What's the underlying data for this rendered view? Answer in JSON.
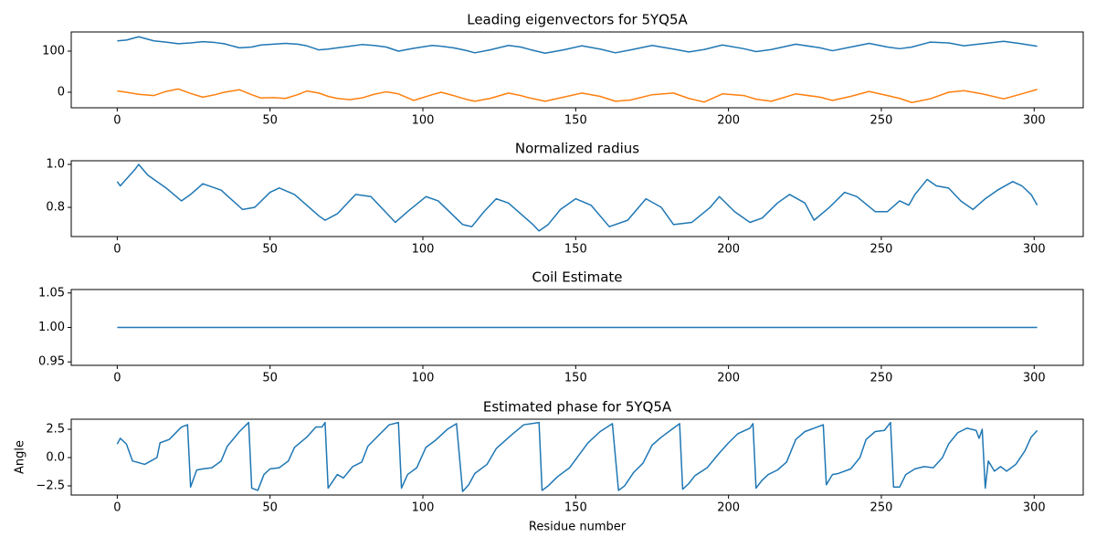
{
  "chart_data": [
    {
      "type": "line",
      "title": "Leading eigenvectors for 5YQ5A",
      "x": [
        0,
        3,
        7,
        12,
        16,
        20,
        24,
        28,
        32,
        35,
        40,
        44,
        47,
        51,
        55,
        59,
        62,
        66,
        69,
        72,
        76,
        80,
        84,
        88,
        92,
        97,
        103,
        106,
        110,
        114,
        117,
        122,
        128,
        132,
        135,
        140,
        146,
        152,
        158,
        163,
        168,
        175,
        182,
        187,
        192,
        198,
        205,
        209,
        214,
        222,
        230,
        234,
        240,
        246,
        252,
        256,
        260,
        266,
        272,
        277,
        283,
        290,
        295,
        301
      ],
      "series": [
        {
          "color": "#1f77b4",
          "values": [
            125,
            127,
            135,
            125,
            122,
            118,
            120,
            123,
            121,
            118,
            108,
            110,
            115,
            117,
            119,
            117,
            113,
            103,
            105,
            108,
            112,
            116,
            114,
            110,
            100,
            107,
            114,
            112,
            108,
            102,
            96,
            103,
            114,
            110,
            104,
            95,
            103,
            113,
            105,
            96,
            103,
            114,
            105,
            98,
            104,
            115,
            106,
            99,
            104,
            117,
            108,
            101,
            110,
            119,
            110,
            106,
            110,
            122,
            120,
            113,
            118,
            124,
            119,
            112
          ]
        },
        {
          "color": "#ff7f0e",
          "values": [
            3,
            0,
            -5,
            -8,
            2,
            8,
            -3,
            -12,
            -6,
            0,
            6,
            -6,
            -14,
            -13,
            -15,
            -6,
            3,
            -2,
            -10,
            -15,
            -18,
            -14,
            -5,
            1,
            -4,
            -20,
            -6,
            0,
            -8,
            -17,
            -22,
            -15,
            -2,
            -8,
            -14,
            -22,
            -12,
            -2,
            -10,
            -22,
            -19,
            -6,
            -2,
            -15,
            -24,
            -4,
            -8,
            -17,
            -22,
            -4,
            -12,
            -20,
            -10,
            2,
            -8,
            -15,
            -25,
            -16,
            0,
            4,
            -4,
            -16,
            -6,
            7
          ]
        }
      ],
      "xlim": [
        -15.05,
        316.05
      ],
      "ylim": [
        -37.8,
        146.7
      ],
      "xticks": [
        0,
        50,
        100,
        150,
        200,
        250,
        300
      ],
      "yticks": [
        0,
        100
      ]
    },
    {
      "type": "line",
      "title": "Normalized radius",
      "x": [
        0,
        1,
        6,
        7,
        10,
        16,
        21,
        24,
        28,
        34,
        41,
        45,
        50,
        53,
        58,
        66,
        68,
        72,
        78,
        83,
        91,
        95,
        101,
        105,
        113,
        116,
        120,
        124,
        128,
        136,
        138,
        141,
        145,
        150,
        155,
        161,
        167,
        173,
        178,
        182,
        188,
        194,
        197,
        202,
        207,
        211,
        216,
        220,
        225,
        228,
        233,
        238,
        242,
        248,
        252,
        256,
        259,
        261,
        265,
        268,
        272,
        276,
        280,
        284,
        288,
        293,
        296,
        299,
        301
      ],
      "values": [
        0.92,
        0.9,
        0.98,
        1.0,
        0.95,
        0.89,
        0.83,
        0.86,
        0.91,
        0.88,
        0.79,
        0.8,
        0.87,
        0.89,
        0.86,
        0.76,
        0.74,
        0.77,
        0.86,
        0.85,
        0.73,
        0.78,
        0.85,
        0.83,
        0.72,
        0.71,
        0.78,
        0.84,
        0.82,
        0.72,
        0.69,
        0.72,
        0.79,
        0.84,
        0.81,
        0.71,
        0.74,
        0.84,
        0.8,
        0.72,
        0.73,
        0.8,
        0.85,
        0.78,
        0.73,
        0.75,
        0.82,
        0.86,
        0.82,
        0.74,
        0.8,
        0.87,
        0.85,
        0.78,
        0.78,
        0.83,
        0.81,
        0.86,
        0.93,
        0.9,
        0.89,
        0.83,
        0.79,
        0.84,
        0.88,
        0.92,
        0.9,
        0.86,
        0.81
      ],
      "color": "#1f77b4",
      "xlim": [
        -15.05,
        316.05
      ],
      "ylim": [
        0.664,
        1.017
      ],
      "xticks": [
        0,
        50,
        100,
        150,
        200,
        250,
        300
      ],
      "yticks": [
        {
          "value": 0.8,
          "label": "0.8"
        },
        {
          "value": 1.0,
          "label": "1.0"
        }
      ]
    },
    {
      "type": "line",
      "title": "Coil Estimate",
      "x": [
        0,
        301
      ],
      "values": [
        1,
        1
      ],
      "color": "#1f77b4",
      "xlim": [
        -15.05,
        316.05
      ],
      "ylim": [
        0.945,
        1.055
      ],
      "xticks": [
        0,
        50,
        100,
        150,
        200,
        250,
        300
      ],
      "yticks": [
        {
          "value": 0.95,
          "label": "0.95"
        },
        {
          "value": 1.0,
          "label": "1.00"
        },
        {
          "value": 1.05,
          "label": "1.05"
        }
      ]
    },
    {
      "type": "line",
      "title": "Estimated phase for 5YQ5A",
      "xlabel": "Residue number",
      "ylabel": "Angle",
      "x": [
        0,
        1,
        3,
        5,
        9,
        11,
        13,
        14,
        17,
        21,
        23,
        24,
        26,
        28,
        31,
        34,
        36,
        40,
        43,
        44,
        46,
        48,
        50,
        53,
        56,
        58,
        62,
        65,
        67,
        68,
        69,
        72,
        74,
        77,
        80,
        82,
        86,
        89,
        92,
        93,
        95,
        98,
        101,
        104,
        108,
        111,
        113,
        115,
        117,
        121,
        124,
        129,
        133,
        138,
        139,
        141,
        144,
        148,
        151,
        154,
        158,
        162,
        164,
        166,
        169,
        172,
        175,
        178,
        182,
        184,
        185,
        187,
        189,
        193,
        197,
        200,
        203,
        207,
        208,
        209,
        211,
        213,
        216,
        219,
        222,
        225,
        228,
        231,
        232,
        234,
        236,
        240,
        243,
        245,
        248,
        251,
        253,
        254,
        256,
        258,
        261,
        264,
        267,
        270,
        272,
        275,
        278,
        281,
        282,
        283,
        284,
        285,
        287,
        289,
        291,
        294,
        297,
        299,
        301
      ],
      "values": [
        1.2,
        1.7,
        1.2,
        -0.3,
        -0.6,
        -0.3,
        0.0,
        1.3,
        1.6,
        2.7,
        2.9,
        -2.6,
        -1.1,
        -1.0,
        -0.9,
        -0.3,
        1.0,
        2.3,
        3.1,
        -2.7,
        -2.9,
        -1.5,
        -1.0,
        -0.9,
        -0.3,
        0.9,
        1.8,
        2.7,
        2.7,
        3.1,
        -2.7,
        -1.5,
        -1.8,
        -0.8,
        -0.4,
        1.0,
        2.1,
        2.9,
        3.1,
        -2.7,
        -1.5,
        -0.9,
        0.9,
        1.5,
        2.5,
        3.0,
        -3.0,
        -2.4,
        -1.4,
        -0.6,
        0.8,
        2.0,
        2.9,
        3.1,
        -2.9,
        -2.5,
        -1.7,
        -0.9,
        0.2,
        1.3,
        2.3,
        3.0,
        -2.9,
        -2.5,
        -1.3,
        -0.5,
        1.1,
        1.8,
        2.6,
        3.0,
        -2.8,
        -2.3,
        -1.6,
        -0.9,
        0.4,
        1.3,
        2.1,
        2.6,
        3.0,
        -2.7,
        -2.0,
        -1.5,
        -1.1,
        -0.4,
        1.6,
        2.3,
        2.6,
        2.9,
        -2.4,
        -1.5,
        -1.4,
        -1.0,
        0.0,
        1.6,
        2.3,
        2.4,
        3.1,
        -2.6,
        -2.6,
        -1.5,
        -1.0,
        -0.8,
        -0.9,
        0.0,
        1.2,
        2.2,
        2.6,
        2.4,
        1.7,
        2.5,
        -2.7,
        -0.3,
        -1.2,
        -0.8,
        -1.2,
        -0.6,
        0.6,
        1.8,
        2.4
      ],
      "color": "#1f77b4",
      "xlim": [
        -15.05,
        316.05
      ],
      "ylim": [
        -3.31,
        3.39
      ],
      "xticks": [
        0,
        50,
        100,
        150,
        200,
        250,
        300
      ],
      "yticks": [
        {
          "value": -2.5,
          "label": "−2.5"
        },
        {
          "value": 0.0,
          "label": "0.0"
        },
        2.5
      ]
    }
  ]
}
